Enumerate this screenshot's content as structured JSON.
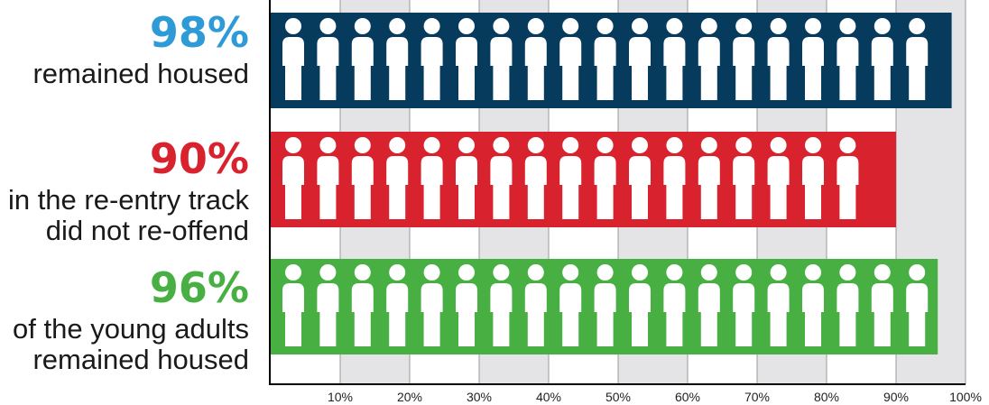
{
  "chart_data": {
    "type": "bar",
    "orientation": "horizontal",
    "categories": [
      {
        "percent_label": "98%",
        "lines": [
          "remained housed"
        ]
      },
      {
        "percent_label": "90%",
        "lines": [
          "in the re-entry track",
          "did not re-offend"
        ]
      },
      {
        "percent_label": "96%",
        "lines": [
          "of the young adults",
          "remained housed"
        ]
      }
    ],
    "values": [
      98,
      90,
      96
    ],
    "colors": [
      "#063b5e",
      "#d8232e",
      "#48b042"
    ],
    "label_colors": [
      "#2e9bd6",
      "#d8232e",
      "#48b042"
    ],
    "xlim": [
      0,
      100
    ],
    "ticks": [
      {
        "value": 10,
        "label": "10%"
      },
      {
        "value": 20,
        "label": "20%"
      },
      {
        "value": 30,
        "label": "30%"
      },
      {
        "value": 40,
        "label": "40%"
      },
      {
        "value": 50,
        "label": "50%"
      },
      {
        "value": 60,
        "label": "60%"
      },
      {
        "value": 70,
        "label": "70%"
      },
      {
        "value": 80,
        "label": "80%"
      },
      {
        "value": 90,
        "label": "90%"
      },
      {
        "value": 100,
        "label": "100%"
      }
    ],
    "grid": "vertical alternating bands",
    "band_color": "#e4e4e6",
    "icon": "person-icon",
    "icon_color": "#ffffff",
    "legend": "none"
  }
}
